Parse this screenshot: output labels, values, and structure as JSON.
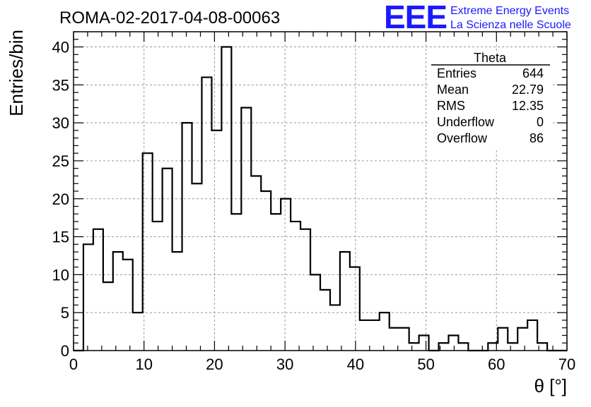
{
  "chart_data": {
    "type": "bar",
    "title": "ROMA-02-2017-04-08-00063",
    "xlabel": "θ [°]",
    "ylabel": "Entries/bin",
    "xlim": [
      0,
      70
    ],
    "ylim": [
      0,
      42
    ],
    "bin_width": 1.4,
    "x_ticks": [
      "0",
      "10",
      "20",
      "30",
      "40",
      "50",
      "60",
      "70"
    ],
    "y_ticks": [
      "0",
      "5",
      "10",
      "15",
      "20",
      "25",
      "30",
      "35",
      "40"
    ],
    "grid": true,
    "bin_low_edges": [
      0,
      1.4,
      2.8,
      4.2,
      5.6,
      7.0,
      8.4,
      9.8,
      11.2,
      12.6,
      14.0,
      15.4,
      16.8,
      18.2,
      19.6,
      21.0,
      22.4,
      23.8,
      25.2,
      26.6,
      28.0,
      29.4,
      30.8,
      32.2,
      33.6,
      35.0,
      36.4,
      37.8,
      39.2,
      40.6,
      42.0,
      43.4,
      44.8,
      46.2,
      47.6,
      49.0,
      50.4,
      51.8,
      53.2,
      54.6,
      56.0,
      57.4,
      58.8,
      60.2,
      61.6,
      63.0,
      64.4,
      65.8,
      67.2,
      68.6
    ],
    "values": [
      0,
      14,
      16,
      9,
      13,
      12,
      5,
      26,
      17,
      24,
      13,
      30,
      22,
      36,
      29,
      40,
      18,
      32,
      23,
      21,
      18,
      20,
      17,
      16,
      10,
      8,
      6,
      13,
      11,
      4,
      4,
      5,
      3,
      3,
      1,
      2,
      0,
      1,
      2,
      1,
      0,
      0,
      1,
      3,
      1,
      3,
      4,
      1,
      0,
      0
    ]
  },
  "stats_box": {
    "title": "Theta",
    "rows": [
      {
        "label": "Entries",
        "value": "644"
      },
      {
        "label": "Mean",
        "value": "22.79"
      },
      {
        "label": "RMS",
        "value": "12.35"
      },
      {
        "label": "Underflow",
        "value": "0"
      },
      {
        "label": "Overflow",
        "value": "86"
      }
    ]
  },
  "logo": {
    "text": "EEE",
    "line1": "Extreme Energy Events",
    "line2": "La Scienza nelle Scuole",
    "color": "#1a1aff"
  },
  "colors": {
    "histogram_line": "#000000",
    "grid": "#999999",
    "logo": "#1a1aff"
  }
}
